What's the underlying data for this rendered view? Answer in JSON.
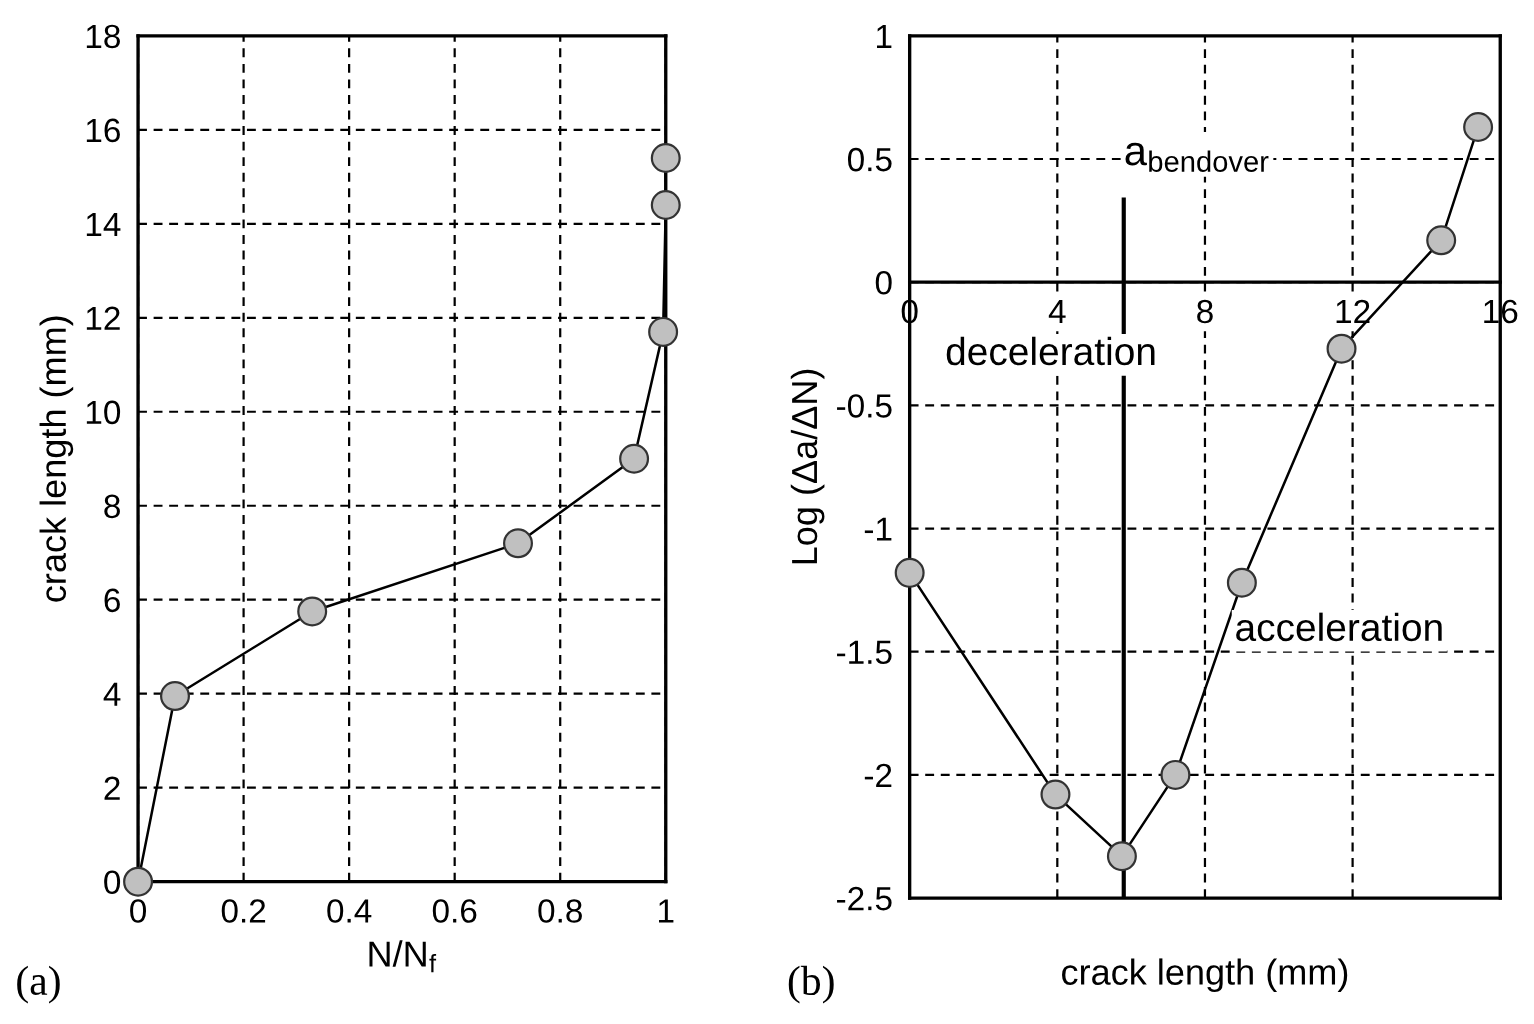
{
  "chart_data": [
    {
      "type": "line",
      "xlabel": "N/N$_{f}$",
      "ylabel": "crack length (mm)",
      "annotations": [
        "(a)"
      ],
      "xlim": [
        0,
        1
      ],
      "xticks": [
        0,
        0.2,
        0.4,
        0.6,
        0.8,
        1
      ],
      "ylim": [
        0,
        18
      ],
      "yticks": [
        0,
        2,
        4,
        6,
        8,
        10,
        12,
        14,
        16,
        18
      ],
      "grid": true,
      "marker": "circle",
      "line_style": "solid",
      "series": [
        {
          "color": "#c0c0c0",
          "x": [
            0,
            0.07,
            0.33,
            0.72,
            0.94,
            0.995,
            1.0,
            1.0
          ],
          "values": [
            0,
            3.95,
            5.75,
            7.2,
            9.0,
            11.7,
            14.4,
            15.4
          ]
        }
      ]
    },
    {
      "type": "line",
      "xlabel": "crack length (mm)",
      "ylabel": "Log (Δa/ΔN)",
      "annotations": [
        "deceleration",
        "acceleration",
        "(b)"
      ],
      "xlim": [
        0,
        16
      ],
      "xticks": [
        0,
        4,
        8,
        12,
        16
      ],
      "ylim": [
        -2.5,
        1
      ],
      "yticks": [
        -2.5,
        -2,
        -1.5,
        -1,
        -0.5,
        0,
        0.5,
        1
      ],
      "grid": true,
      "marker": "circle",
      "line_style": "solid",
      "ref_lines": [
        {
          "axis": "x",
          "value": 5.8,
          "label": "a$_{bendover}$"
        }
      ],
      "series": [
        {
          "color": "#c0c0c0",
          "x": [
            0,
            3.95,
            5.75,
            7.2,
            9.0,
            11.7,
            14.4,
            15.4
          ],
          "values": [
            -1.18,
            -2.08,
            -2.33,
            -2.0,
            -1.22,
            -0.27,
            0.17,
            0.63
          ]
        }
      ]
    }
  ]
}
